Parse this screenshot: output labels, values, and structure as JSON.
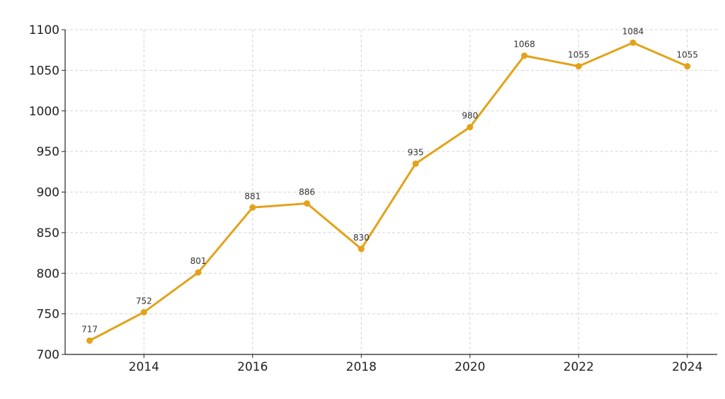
{
  "chart_data": {
    "type": "line",
    "title": "",
    "xlabel": "",
    "ylabel": "",
    "x": [
      2013,
      2014,
      2015,
      2016,
      2017,
      2018,
      2019,
      2020,
      2021,
      2022,
      2023,
      2024
    ],
    "series": [
      {
        "values": [
          717,
          752,
          801,
          881,
          886,
          830,
          935,
          980,
          1068,
          1055,
          1084,
          1055
        ]
      }
    ],
    "xlim": [
      2012.55,
      2024.55
    ],
    "ylim": [
      700,
      1100
    ],
    "x_ticks": [
      "2014",
      "2016",
      "2018",
      "2020",
      "2022",
      "2024"
    ],
    "y_ticks": [
      "700",
      "750",
      "800",
      "850",
      "900",
      "950",
      "1000",
      "1050",
      "1100"
    ],
    "grid": true,
    "data_labels": true,
    "colors": {
      "line": "#e3a21a",
      "marker": "#e3a21a",
      "grid": "#d4d4d4",
      "axis": "#222222"
    }
  }
}
